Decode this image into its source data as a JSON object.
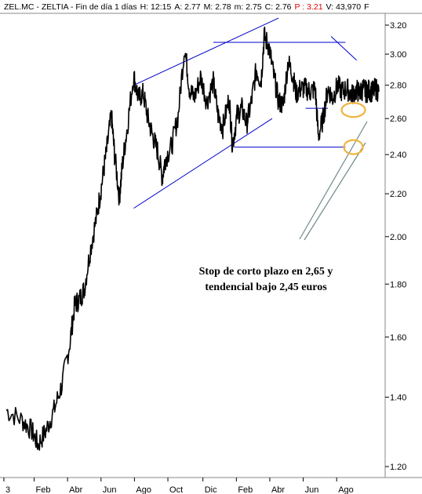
{
  "header": {
    "segments": [
      {
        "text": "ZEL.MC - ZELTIA - Fin de día 1 días",
        "color": "#000000"
      },
      {
        "text": "H: 12:15",
        "color": "#000000"
      },
      {
        "text": "A: 2.77",
        "color": "#000000"
      },
      {
        "text": "M: 2.78",
        "color": "#000000"
      },
      {
        "text": "m: 2.75",
        "color": "#000000"
      },
      {
        "text": "C: 2.76",
        "color": "#000000"
      },
      {
        "text": "P : 3.21",
        "color": "#e00000"
      },
      {
        "text": "V: 43,970",
        "color": "#000000"
      },
      {
        "text": "F",
        "color": "#000000"
      }
    ]
  },
  "chart_data": {
    "type": "line",
    "title": "ZEL.MC - ZELTIA - Fin de día 1 días",
    "x_tick_labels": [
      "3",
      "Feb",
      "Abr",
      "Jun",
      "Ago",
      "Oct",
      "Dic",
      "Feb",
      "Abr",
      "Jun",
      "Ago"
    ],
    "y_ticks": [
      1.2,
      1.4,
      1.6,
      1.8,
      2.0,
      2.2,
      2.4,
      2.6,
      2.8,
      3.0,
      3.2
    ],
    "y_tick_labels": [
      "1.20",
      "1.40",
      "1.60",
      "1.80",
      "2.00",
      "2.20",
      "2.40",
      "2.60",
      "2.80",
      "3.00",
      "3.20"
    ],
    "y_scale": "log",
    "ylim": [
      1.18,
      3.28
    ],
    "grid": false,
    "price_color": "#000000",
    "trendline_color": "#0000cc",
    "highlight_color": "#f0b43c",
    "arrow_color": "#6e8a8a",
    "price_series": {
      "name": "ZEL.MC",
      "x": [
        0.0,
        1.0,
        1.6,
        2.0,
        2.5,
        3.0,
        3.5,
        4.0,
        4.3,
        4.6,
        4.9,
        5.3,
        5.7,
        6.0,
        6.3,
        6.6,
        6.8,
        7.1,
        7.3,
        7.6,
        8.0,
        8.3,
        8.6,
        8.9,
        9.2,
        9.5,
        9.8,
        10.0,
        10.4,
        10.8,
        11.2,
        11.5,
        11.8,
        12.2,
        12.6,
        13.0,
        13.3,
        13.6,
        14.0,
        14.2,
        14.5,
        14.8,
        15.1,
        15.4,
        15.7,
        16.0,
        16.2,
        16.5,
        16.8,
        17.1,
        17.4,
        17.7,
        18.0,
        18.2,
        18.5,
        18.8,
        19.1,
        19.4,
        19.6,
        19.9,
        20.2,
        20.5,
        20.8,
        21.1,
        21.4,
        21.7,
        22.0,
        22.2,
        22.4,
        22.6,
        22.8,
        23.0,
        23.2,
        23.4
      ],
      "y": [
        1.36,
        1.33,
        1.3,
        1.26,
        1.3,
        1.36,
        1.44,
        1.58,
        1.72,
        1.74,
        1.78,
        1.95,
        2.1,
        2.25,
        2.42,
        2.62,
        2.4,
        2.18,
        2.35,
        2.55,
        2.86,
        2.72,
        2.75,
        2.6,
        2.5,
        2.42,
        2.28,
        2.38,
        2.45,
        2.62,
        3.05,
        2.78,
        2.72,
        2.85,
        2.7,
        2.82,
        2.62,
        2.55,
        2.72,
        2.45,
        2.62,
        2.66,
        2.57,
        2.7,
        2.9,
        2.82,
        3.12,
        3.05,
        2.86,
        2.7,
        2.68,
        2.95,
        2.86,
        2.75,
        2.78,
        2.78,
        2.76,
        2.78,
        2.5,
        2.6,
        2.78,
        2.72,
        2.8,
        2.76,
        2.78,
        2.74,
        2.77,
        2.75,
        2.78,
        2.76,
        2.77,
        2.76,
        2.78,
        2.76
      ]
    },
    "trendlines": [
      {
        "from": [
          8.0,
          2.13
        ],
        "to": [
          16.7,
          2.6
        ]
      },
      {
        "from": [
          8.0,
          2.8
        ],
        "to": [
          17.1,
          3.25
        ]
      },
      {
        "from": [
          14.3,
          2.44
        ],
        "to": [
          21.3,
          2.44
        ]
      },
      {
        "from": [
          13.0,
          3.08
        ],
        "to": [
          21.3,
          3.08
        ]
      },
      {
        "from": [
          18.8,
          2.66
        ],
        "to": [
          20.2,
          2.66
        ]
      }
    ],
    "annotation": "Stop de corto plazo en 2,65 y tendencial bajo 2,45 euros"
  },
  "annotation_lines": [
    "Stop de corto plazo en 2,65 y",
    "tendencial bajo 2,45 euros"
  ]
}
